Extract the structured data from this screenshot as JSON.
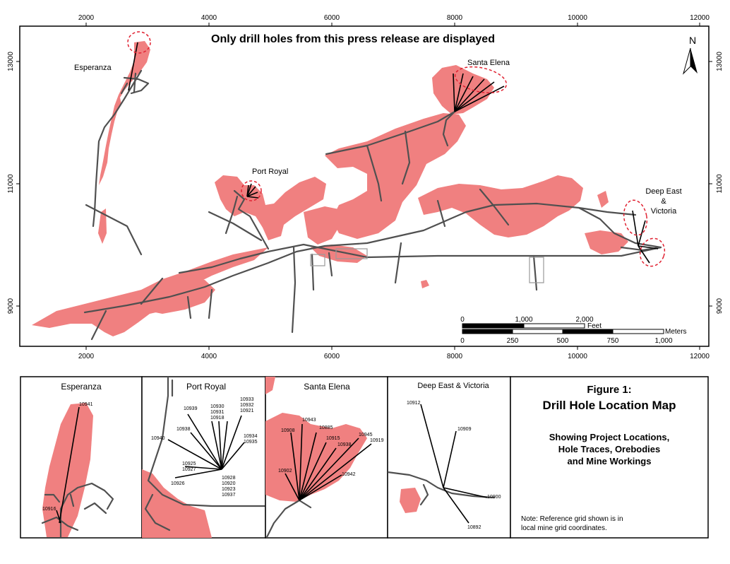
{
  "main_map": {
    "title": "Only drill holes from this press release are displayed",
    "x_ticks": [
      "2000",
      "4000",
      "6000",
      "8000",
      "10000",
      "12000"
    ],
    "y_ticks": [
      "13000",
      "11000",
      "9000"
    ],
    "north_label": "N",
    "locations": {
      "esperanza": "Esperanza",
      "santa_elena": "Santa Elena",
      "port_royal": "Port Royal",
      "deep_east_1": "Deep East",
      "deep_east_2": "&",
      "deep_east_3": "Victoria"
    },
    "scale_bar": {
      "feet_ticks": [
        "0",
        "1,000",
        "2,000"
      ],
      "feet_unit": "Feet",
      "meters_ticks": [
        "0",
        "250",
        "500",
        "750",
        "1,000"
      ],
      "meters_unit": "Meters"
    }
  },
  "panels": {
    "esperanza": {
      "title": "Esperanza",
      "holes": [
        "10941",
        "10916"
      ]
    },
    "port_royal": {
      "title": "Port Royal",
      "holes": [
        "10939",
        "10930",
        "10931",
        "10918",
        "10933",
        "10932",
        "10921",
        "10938",
        "10940",
        "10934",
        "10935",
        "10925",
        "10927",
        "10926",
        "10928",
        "10920",
        "10923",
        "10937"
      ]
    },
    "santa_elena": {
      "title": "Santa Elena",
      "holes": [
        "10943",
        "10908",
        "10885",
        "10915",
        "10945",
        "10938",
        "10919",
        "10902",
        "10942"
      ]
    },
    "deep_east": {
      "title": "Deep East & Victoria",
      "holes": [
        "10912",
        "10909",
        "10900",
        "10892"
      ]
    }
  },
  "figure": {
    "number": "Figure 1:",
    "title": "Drill Hole Location Map",
    "subtitle_1": "Showing Project Locations,",
    "subtitle_2": "Hole Traces, Orebodies",
    "subtitle_3": "and Mine Workings",
    "note_1": "Note: Reference grid shown is in",
    "note_2": "local mine grid coordinates."
  },
  "colors": {
    "orebody": "#f08080",
    "workings": "#505050",
    "highlight_outline": "#e02030",
    "trace": "#000000"
  }
}
